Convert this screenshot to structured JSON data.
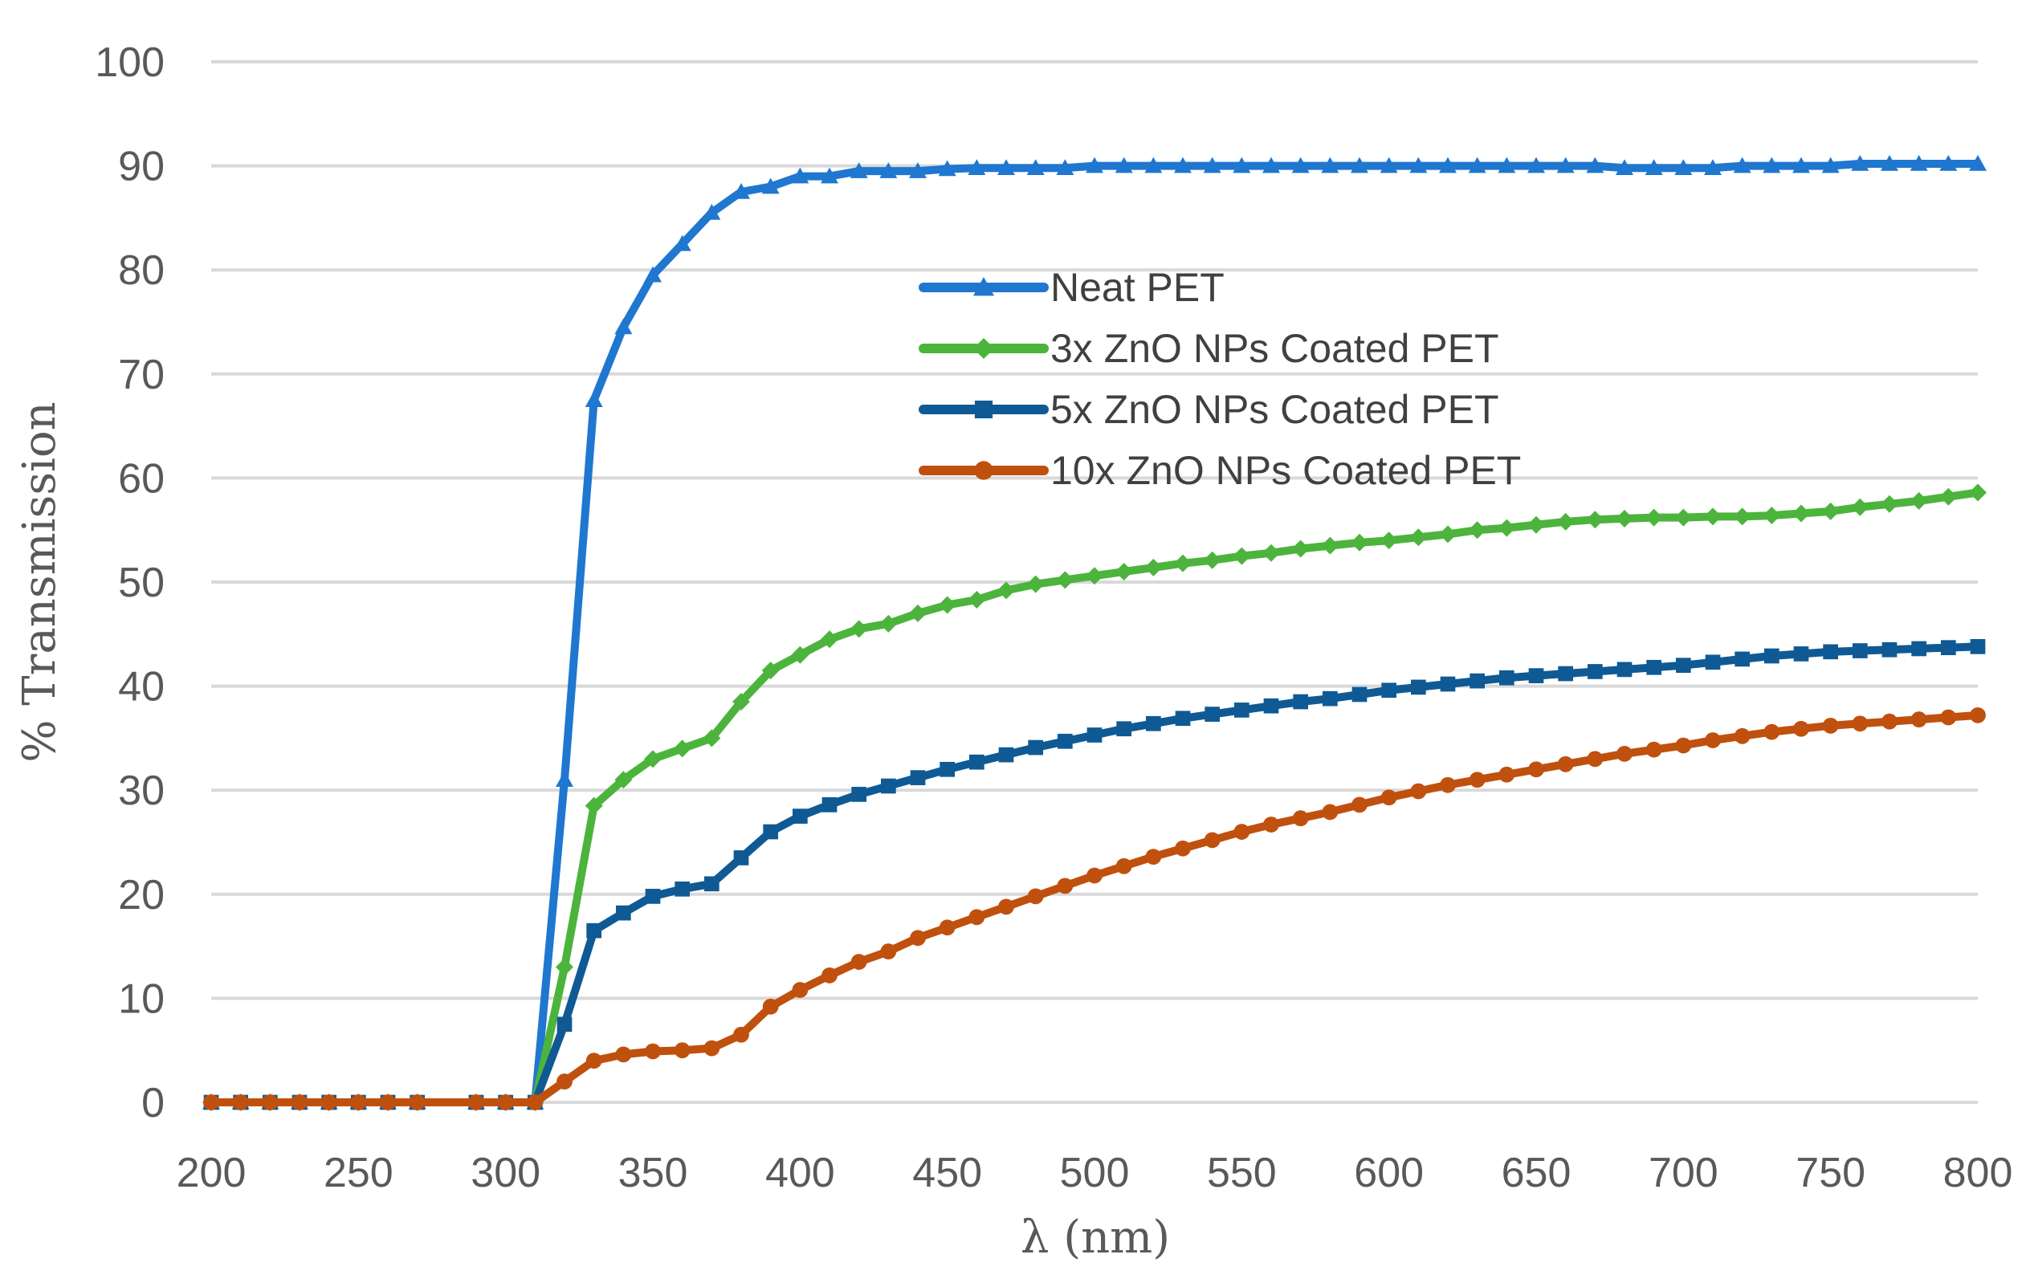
{
  "chart_data": {
    "type": "line",
    "title": "",
    "xlabel": "λ (nm)",
    "ylabel": "% Transmission",
    "xlim": [
      200,
      800
    ],
    "ylim": [
      0,
      100
    ],
    "xticks": [
      200,
      250,
      300,
      350,
      400,
      450,
      500,
      550,
      600,
      650,
      700,
      750,
      800
    ],
    "yticks": [
      0,
      10,
      20,
      30,
      40,
      50,
      60,
      70,
      80,
      90,
      100
    ],
    "grid": "horizontal",
    "legend": "center",
    "x": [
      200,
      210,
      220,
      230,
      240,
      250,
      260,
      270,
      280,
      290,
      300,
      310,
      320,
      330,
      340,
      350,
      360,
      370,
      380,
      390,
      400,
      410,
      420,
      430,
      440,
      450,
      460,
      470,
      480,
      490,
      500,
      510,
      520,
      530,
      540,
      550,
      560,
      570,
      580,
      590,
      600,
      610,
      620,
      630,
      640,
      650,
      660,
      670,
      680,
      690,
      700,
      710,
      720,
      730,
      740,
      750,
      760,
      770,
      780,
      790,
      800
    ],
    "series": [
      {
        "name": "Neat PET",
        "color": "#1f77d0",
        "marker": "triangle",
        "values": [
          0,
          0,
          0,
          0,
          0,
          0,
          0,
          0,
          0,
          0,
          0,
          0,
          31,
          67.5,
          74.5,
          79.5,
          82.5,
          85.5,
          87.5,
          88,
          89,
          89,
          89.5,
          89.5,
          89.5,
          89.7,
          89.8,
          89.8,
          89.8,
          89.8,
          90,
          90,
          90,
          90,
          90,
          90,
          90,
          90,
          90,
          90,
          90,
          90,
          90,
          90,
          90,
          90,
          90,
          90,
          89.8,
          89.8,
          89.8,
          89.8,
          90,
          90,
          90,
          90,
          90.2,
          90.2,
          90.2,
          90.2,
          90.2
        ]
      },
      {
        "name": "3x ZnO NPs Coated PET",
        "color": "#4cb43c",
        "marker": "diamond",
        "values": [
          0,
          0,
          0,
          0,
          0,
          0,
          0,
          0,
          0,
          0,
          0,
          0,
          13,
          28.5,
          31,
          33,
          34,
          35,
          38.5,
          41.5,
          43,
          44.5,
          45.5,
          46,
          47,
          47.8,
          48.3,
          49.2,
          49.8,
          50.2,
          50.6,
          51,
          51.4,
          51.8,
          52.1,
          52.5,
          52.8,
          53.2,
          53.5,
          53.8,
          54,
          54.3,
          54.6,
          55,
          55.2,
          55.5,
          55.8,
          56,
          56.1,
          56.2,
          56.2,
          56.3,
          56.3,
          56.4,
          56.6,
          56.8,
          57.2,
          57.5,
          57.8,
          58.2,
          58.6
        ]
      },
      {
        "name": "5x ZnO NPs Coated PET",
        "color": "#0f5a94",
        "marker": "square",
        "values": [
          0,
          0,
          0,
          0,
          0,
          0,
          0,
          0,
          0,
          0,
          0,
          0,
          7.5,
          16.5,
          18.2,
          19.8,
          20.5,
          21,
          23.5,
          26,
          27.5,
          28.6,
          29.6,
          30.4,
          31.2,
          32,
          32.7,
          33.4,
          34.1,
          34.7,
          35.3,
          35.9,
          36.4,
          36.9,
          37.3,
          37.7,
          38.1,
          38.5,
          38.8,
          39.2,
          39.6,
          39.9,
          40.2,
          40.5,
          40.8,
          41,
          41.2,
          41.4,
          41.6,
          41.8,
          42,
          42.3,
          42.6,
          42.9,
          43.1,
          43.3,
          43.4,
          43.5,
          43.6,
          43.7,
          43.8
        ]
      },
      {
        "name": "10x ZnO NPs Coated PET",
        "color": "#c0500e",
        "marker": "circle",
        "values": [
          0,
          0,
          0,
          0,
          0,
          0,
          0,
          0,
          0,
          0,
          0,
          0,
          2,
          4,
          4.6,
          4.9,
          5,
          5.2,
          6.5,
          9.2,
          10.8,
          12.2,
          13.5,
          14.5,
          15.8,
          16.8,
          17.8,
          18.8,
          19.8,
          20.8,
          21.8,
          22.7,
          23.6,
          24.4,
          25.2,
          26,
          26.7,
          27.3,
          27.9,
          28.6,
          29.3,
          29.9,
          30.5,
          31,
          31.5,
          32,
          32.5,
          33,
          33.5,
          33.9,
          34.3,
          34.8,
          35.2,
          35.6,
          35.9,
          36.2,
          36.4,
          36.6,
          36.8,
          37,
          37.2
        ]
      }
    ]
  }
}
